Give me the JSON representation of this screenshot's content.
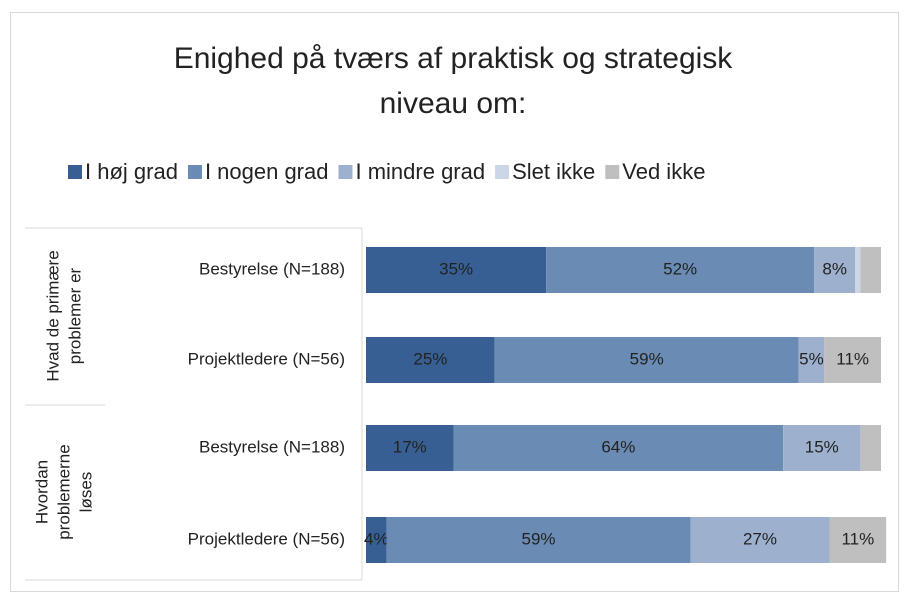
{
  "chart_data": {
    "type": "stacked_bar_horizontal",
    "title_lines": [
      "Enighed på tværs af praktisk og strategisk",
      "niveau om:"
    ],
    "groups": [
      {
        "label_lines": [
          "Hvad de primære",
          "problemer er"
        ]
      },
      {
        "label_lines": [
          "Hvordan",
          "problemerne",
          "løses"
        ]
      }
    ],
    "categories": [
      "Bestyrelse (N=188)",
      "Projektledere (N=56)",
      "Bestyrelse (N=188)",
      "Projektledere (N=56)"
    ],
    "xlim": [
      0,
      100
    ],
    "series": [
      {
        "name": "I høj grad",
        "color": "#375f94",
        "values": [
          35,
          25,
          17,
          4
        ],
        "value_labels": [
          "35%",
          "25%",
          "17%",
          "4%"
        ]
      },
      {
        "name": "I nogen grad",
        "color": "#6a8bb3",
        "values": [
          52,
          59,
          64,
          59
        ],
        "value_labels": [
          "52%",
          "59%",
          "64%",
          "59%"
        ]
      },
      {
        "name": "I mindre grad",
        "color": "#9db1cf",
        "values": [
          8,
          5,
          15,
          27
        ],
        "value_labels": [
          "8%",
          "5%",
          "15%",
          "27%"
        ]
      },
      {
        "name": "Slet ikke",
        "color": "#cbd6e6",
        "values": [
          1,
          0,
          0,
          0
        ],
        "value_labels": [
          null,
          null,
          null,
          null
        ]
      },
      {
        "name": "Ved ikke",
        "color": "#bfbfbf",
        "values": [
          4,
          11,
          4,
          11
        ],
        "value_labels": [
          null,
          "11%",
          null,
          "11%"
        ]
      }
    ]
  }
}
